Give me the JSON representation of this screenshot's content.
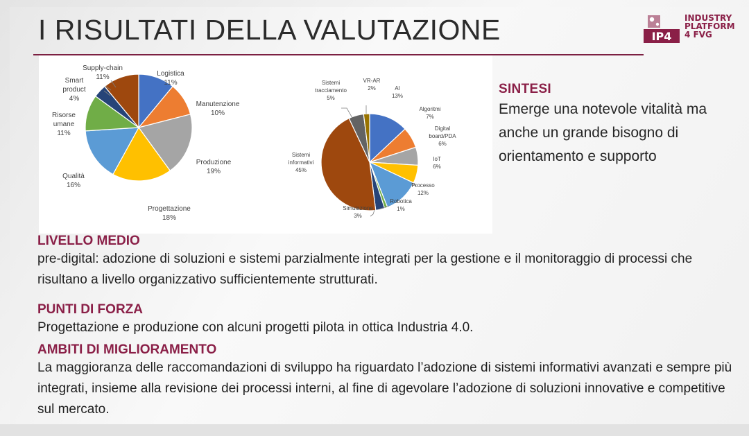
{
  "title": "I RISULTATI DELLA VALUTAZIONE",
  "logo": {
    "mark": "IP4",
    "line1": "INDUSTRY",
    "line2": "PLATFORM",
    "line3": "4 FVG",
    "colors": {
      "brand": "#8a1f47"
    }
  },
  "chart_data": [
    {
      "type": "pie",
      "title": "",
      "slices": [
        {
          "label": "Logistica",
          "value": 11,
          "display": "11%",
          "color": "#4472c4"
        },
        {
          "label": "Manutenzione",
          "value": 10,
          "display": "10%",
          "color": "#ed7d31"
        },
        {
          "label": "Produzione",
          "value": 19,
          "display": "19%",
          "color": "#a5a5a5"
        },
        {
          "label": "Progettazione",
          "value": 18,
          "display": "18%",
          "color": "#ffc000"
        },
        {
          "label": "Qualità",
          "value": 16,
          "display": "16%",
          "color": "#5b9bd5"
        },
        {
          "label": "Risorse umane",
          "value": 11,
          "display": "11%",
          "color": "#70ad47"
        },
        {
          "label": "Smart product",
          "value": 4,
          "display": "4%",
          "color": "#264478"
        },
        {
          "label": "Supply-chain",
          "value": 11,
          "display": "11%",
          "color": "#9e480e"
        }
      ]
    },
    {
      "type": "pie",
      "title": "",
      "slices": [
        {
          "label": "AI",
          "value": 13,
          "display": "13%",
          "color": "#4472c4"
        },
        {
          "label": "Algoritmi",
          "value": 7,
          "display": "7%",
          "color": "#ed7d31"
        },
        {
          "label": "Digital board/PDA",
          "value": 6,
          "display": "6%",
          "color": "#a5a5a5"
        },
        {
          "label": "IoT",
          "value": 6,
          "display": "6%",
          "color": "#ffc000"
        },
        {
          "label": "Processo",
          "value": 12,
          "display": "12%",
          "color": "#5b9bd5"
        },
        {
          "label": "Robotica",
          "value": 1,
          "display": "1%",
          "color": "#70ad47"
        },
        {
          "label": "Simulazione",
          "value": 3,
          "display": "3%",
          "color": "#264478"
        },
        {
          "label": "Sistemi informativi",
          "value": 45,
          "display": "45%",
          "color": "#9e480e"
        },
        {
          "label": "Sistemi tracciamento",
          "value": 5,
          "display": "5%",
          "color": "#636363"
        },
        {
          "label": "VR-AR",
          "value": 2,
          "display": "2%",
          "color": "#997300"
        }
      ]
    }
  ],
  "sintesi": {
    "heading": "SINTESI",
    "body": "Emerge una notevole vitalità ma anche un grande bisogno di orientamento e supporto"
  },
  "livello": {
    "heading": "LIVELLO MEDIO",
    "body": "pre-digital: adozione di soluzioni e sistemi parzialmente integrati per la gestione e il monitoraggio di processi che risultano a livello organizzativo sufficientemente strutturati."
  },
  "punti": {
    "heading": "PUNTI DI FORZA",
    "body": "Progettazione e produzione con alcuni progetti pilota in ottica Industria 4.0."
  },
  "ambiti": {
    "heading": "AMBITI DI MIGLIORAMENTO",
    "body": "La maggioranza delle raccomandazioni di sviluppo ha riguardato l’adozione di sistemi informativi avanzati e sempre più integrati, insieme alla revisione dei processi interni, al fine di agevolare l’adozione di soluzioni innovative e competitive sul mercato."
  }
}
